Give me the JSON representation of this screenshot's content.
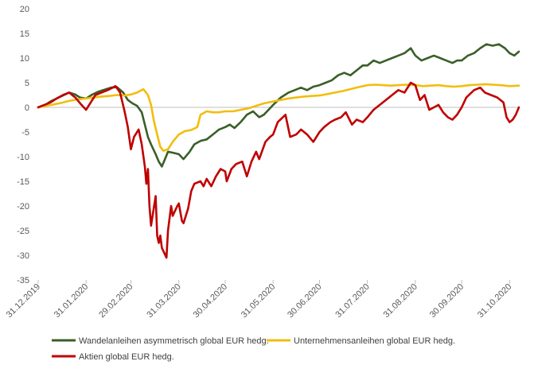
{
  "chart_data": {
    "type": "line",
    "title": "",
    "xlabel": "",
    "ylabel": "",
    "ylim": [
      -35,
      20
    ],
    "yticks": [
      20,
      15,
      10,
      5,
      0,
      -5,
      -10,
      -15,
      -20,
      -25,
      -30,
      -35
    ],
    "ytick_labels": [
      "20",
      "15",
      "10",
      "5",
      "0",
      "-5",
      "-10",
      "-15",
      "-20",
      "-25",
      "-30",
      "-35"
    ],
    "xlim": [
      "2019-12-31",
      "2020-11-06"
    ],
    "xticks": [
      "2019-12-31",
      "2020-01-31",
      "2020-02-29",
      "2020-03-31",
      "2020-04-30",
      "2020-05-31",
      "2020-06-30",
      "2020-07-31",
      "2020-08-31",
      "2020-09-30",
      "2020-10-31"
    ],
    "xtick_labels": [
      "31.12.2019",
      "31.01.2020",
      "29.02.2020",
      "31.03.2020",
      "30.04.2020",
      "31.05.2020",
      "30.06.2020",
      "31.07.2020",
      "31.08.2020",
      "30.09.2020",
      "31.10.2020"
    ],
    "grid": false,
    "legend_position": "bottom",
    "series": [
      {
        "name": "Wandelanleihen asymmetrisch global EUR hedg.",
        "color": "#3a5f27",
        "points": [
          [
            "2019-12-31",
            0
          ],
          [
            "2020-01-05",
            0.6
          ],
          [
            "2020-01-08",
            1.2
          ],
          [
            "2020-01-12",
            1.8
          ],
          [
            "2020-01-16",
            2.4
          ],
          [
            "2020-01-20",
            3.0
          ],
          [
            "2020-01-24",
            2.6
          ],
          [
            "2020-01-27",
            2.0
          ],
          [
            "2020-01-31",
            1.8
          ],
          [
            "2020-02-04",
            2.6
          ],
          [
            "2020-02-08",
            3.2
          ],
          [
            "2020-02-12",
            3.6
          ],
          [
            "2020-02-16",
            4.0
          ],
          [
            "2020-02-20",
            4.1
          ],
          [
            "2020-02-24",
            3.0
          ],
          [
            "2020-02-27",
            1.5
          ],
          [
            "2020-03-01",
            0.8
          ],
          [
            "2020-03-04",
            0.3
          ],
          [
            "2020-03-07",
            -1.0
          ],
          [
            "2020-03-09",
            -3.5
          ],
          [
            "2020-03-11",
            -6.0
          ],
          [
            "2020-03-13",
            -7.5
          ],
          [
            "2020-03-16",
            -9.5
          ],
          [
            "2020-03-18",
            -11.0
          ],
          [
            "2020-03-20",
            -12.0
          ],
          [
            "2020-03-22",
            -10.5
          ],
          [
            "2020-03-24",
            -9.0
          ],
          [
            "2020-03-27",
            -9.2
          ],
          [
            "2020-03-31",
            -9.5
          ],
          [
            "2020-04-03",
            -10.5
          ],
          [
            "2020-04-07",
            -9.0
          ],
          [
            "2020-04-10",
            -7.5
          ],
          [
            "2020-04-14",
            -6.8
          ],
          [
            "2020-04-18",
            -6.5
          ],
          [
            "2020-04-22",
            -5.5
          ],
          [
            "2020-04-26",
            -4.5
          ],
          [
            "2020-04-30",
            -4.0
          ],
          [
            "2020-05-03",
            -3.5
          ],
          [
            "2020-05-06",
            -4.2
          ],
          [
            "2020-05-10",
            -3.0
          ],
          [
            "2020-05-14",
            -1.5
          ],
          [
            "2020-05-18",
            -0.8
          ],
          [
            "2020-05-22",
            -2.0
          ],
          [
            "2020-05-25",
            -1.5
          ],
          [
            "2020-05-28",
            -0.5
          ],
          [
            "2020-05-31",
            0.5
          ],
          [
            "2020-06-05",
            2.0
          ],
          [
            "2020-06-10",
            3.0
          ],
          [
            "2020-06-14",
            3.5
          ],
          [
            "2020-06-18",
            4.0
          ],
          [
            "2020-06-22",
            3.5
          ],
          [
            "2020-06-26",
            4.2
          ],
          [
            "2020-06-30",
            4.5
          ],
          [
            "2020-07-04",
            5.0
          ],
          [
            "2020-07-08",
            5.5
          ],
          [
            "2020-07-12",
            6.5
          ],
          [
            "2020-07-16",
            7.0
          ],
          [
            "2020-07-20",
            6.5
          ],
          [
            "2020-07-24",
            7.5
          ],
          [
            "2020-07-28",
            8.5
          ],
          [
            "2020-07-31",
            8.5
          ],
          [
            "2020-08-04",
            9.5
          ],
          [
            "2020-08-08",
            9.0
          ],
          [
            "2020-08-12",
            9.5
          ],
          [
            "2020-08-16",
            10.0
          ],
          [
            "2020-08-20",
            10.5
          ],
          [
            "2020-08-24",
            11.0
          ],
          [
            "2020-08-28",
            12.0
          ],
          [
            "2020-08-31",
            10.5
          ],
          [
            "2020-09-04",
            9.5
          ],
          [
            "2020-09-08",
            10.0
          ],
          [
            "2020-09-12",
            10.5
          ],
          [
            "2020-09-16",
            10.0
          ],
          [
            "2020-09-20",
            9.5
          ],
          [
            "2020-09-24",
            9.0
          ],
          [
            "2020-09-27",
            9.5
          ],
          [
            "2020-09-30",
            9.5
          ],
          [
            "2020-10-04",
            10.5
          ],
          [
            "2020-10-08",
            11.0
          ],
          [
            "2020-10-12",
            12.0
          ],
          [
            "2020-10-16",
            12.8
          ],
          [
            "2020-10-20",
            12.5
          ],
          [
            "2020-10-24",
            12.8
          ],
          [
            "2020-10-28",
            12.0
          ],
          [
            "2020-10-31",
            11.0
          ],
          [
            "2020-11-03",
            10.5
          ],
          [
            "2020-11-06",
            11.3
          ]
        ]
      },
      {
        "name": "Unternehmensanleihen global EUR hedg.",
        "color": "#f2bd0d",
        "points": [
          [
            "2019-12-31",
            0
          ],
          [
            "2020-01-05",
            0.3
          ],
          [
            "2020-01-10",
            0.6
          ],
          [
            "2020-01-15",
            0.9
          ],
          [
            "2020-01-20",
            1.3
          ],
          [
            "2020-01-25",
            1.6
          ],
          [
            "2020-01-31",
            1.8
          ],
          [
            "2020-02-05",
            2.0
          ],
          [
            "2020-02-10",
            2.2
          ],
          [
            "2020-02-15",
            2.3
          ],
          [
            "2020-02-20",
            2.5
          ],
          [
            "2020-02-25",
            2.4
          ],
          [
            "2020-02-29",
            2.6
          ],
          [
            "2020-03-04",
            3.0
          ],
          [
            "2020-03-08",
            3.7
          ],
          [
            "2020-03-11",
            2.5
          ],
          [
            "2020-03-13",
            0.5
          ],
          [
            "2020-03-15",
            -3.0
          ],
          [
            "2020-03-17",
            -5.5
          ],
          [
            "2020-03-19",
            -8.0
          ],
          [
            "2020-03-21",
            -8.8
          ],
          [
            "2020-03-24",
            -8.5
          ],
          [
            "2020-03-27",
            -7.0
          ],
          [
            "2020-03-31",
            -5.5
          ],
          [
            "2020-04-04",
            -4.8
          ],
          [
            "2020-04-08",
            -4.6
          ],
          [
            "2020-04-12",
            -4.0
          ],
          [
            "2020-04-14",
            -1.5
          ],
          [
            "2020-04-18",
            -0.8
          ],
          [
            "2020-04-22",
            -1.0
          ],
          [
            "2020-04-26",
            -1.0
          ],
          [
            "2020-04-30",
            -0.8
          ],
          [
            "2020-05-05",
            -0.8
          ],
          [
            "2020-05-10",
            -0.5
          ],
          [
            "2020-05-15",
            -0.2
          ],
          [
            "2020-05-20",
            0.3
          ],
          [
            "2020-05-25",
            0.8
          ],
          [
            "2020-05-31",
            1.2
          ],
          [
            "2020-06-05",
            1.5
          ],
          [
            "2020-06-10",
            1.8
          ],
          [
            "2020-06-15",
            2.0
          ],
          [
            "2020-06-20",
            2.2
          ],
          [
            "2020-06-25",
            2.3
          ],
          [
            "2020-06-30",
            2.4
          ],
          [
            "2020-07-05",
            2.7
          ],
          [
            "2020-07-10",
            3.0
          ],
          [
            "2020-07-15",
            3.3
          ],
          [
            "2020-07-20",
            3.7
          ],
          [
            "2020-07-25",
            4.1
          ],
          [
            "2020-07-31",
            4.5
          ],
          [
            "2020-08-05",
            4.6
          ],
          [
            "2020-08-10",
            4.5
          ],
          [
            "2020-08-15",
            4.4
          ],
          [
            "2020-08-20",
            4.5
          ],
          [
            "2020-08-25",
            4.6
          ],
          [
            "2020-08-31",
            4.5
          ],
          [
            "2020-09-05",
            4.3
          ],
          [
            "2020-09-10",
            4.4
          ],
          [
            "2020-09-15",
            4.5
          ],
          [
            "2020-09-20",
            4.3
          ],
          [
            "2020-09-25",
            4.2
          ],
          [
            "2020-09-30",
            4.3
          ],
          [
            "2020-10-05",
            4.5
          ],
          [
            "2020-10-10",
            4.6
          ],
          [
            "2020-10-15",
            4.7
          ],
          [
            "2020-10-20",
            4.6
          ],
          [
            "2020-10-25",
            4.5
          ],
          [
            "2020-10-31",
            4.3
          ],
          [
            "2020-11-06",
            4.4
          ]
        ]
      },
      {
        "name": "Aktien global EUR hedg.",
        "color": "#c00000",
        "points": [
          [
            "2019-12-31",
            0
          ],
          [
            "2020-01-04",
            0.5
          ],
          [
            "2020-01-08",
            1.0
          ],
          [
            "2020-01-12",
            1.8
          ],
          [
            "2020-01-16",
            2.5
          ],
          [
            "2020-01-20",
            3.0
          ],
          [
            "2020-01-24",
            2.0
          ],
          [
            "2020-01-28",
            0.5
          ],
          [
            "2020-01-31",
            -0.5
          ],
          [
            "2020-02-03",
            1.0
          ],
          [
            "2020-02-06",
            2.5
          ],
          [
            "2020-02-10",
            3.0
          ],
          [
            "2020-02-14",
            3.5
          ],
          [
            "2020-02-19",
            4.3
          ],
          [
            "2020-02-22",
            3.0
          ],
          [
            "2020-02-25",
            -1.0
          ],
          [
            "2020-02-27",
            -4.0
          ],
          [
            "2020-02-29",
            -8.5
          ],
          [
            "2020-03-02",
            -6.0
          ],
          [
            "2020-03-05",
            -4.5
          ],
          [
            "2020-03-07",
            -7.5
          ],
          [
            "2020-03-09",
            -12.0
          ],
          [
            "2020-03-10",
            -15.5
          ],
          [
            "2020-03-11",
            -12.5
          ],
          [
            "2020-03-12",
            -20.0
          ],
          [
            "2020-03-13",
            -24.0
          ],
          [
            "2020-03-16",
            -18.0
          ],
          [
            "2020-03-17",
            -26.0
          ],
          [
            "2020-03-18",
            -27.5
          ],
          [
            "2020-03-19",
            -26.0
          ],
          [
            "2020-03-20",
            -28.5
          ],
          [
            "2020-03-23",
            -30.5
          ],
          [
            "2020-03-24",
            -25.0
          ],
          [
            "2020-03-26",
            -20.0
          ],
          [
            "2020-03-27",
            -22.0
          ],
          [
            "2020-03-30",
            -20.0
          ],
          [
            "2020-03-31",
            -19.5
          ],
          [
            "2020-04-02",
            -23.0
          ],
          [
            "2020-04-03",
            -23.5
          ],
          [
            "2020-04-06",
            -20.5
          ],
          [
            "2020-04-08",
            -17.0
          ],
          [
            "2020-04-10",
            -15.5
          ],
          [
            "2020-04-14",
            -15.0
          ],
          [
            "2020-04-16",
            -16.0
          ],
          [
            "2020-04-18",
            -14.5
          ],
          [
            "2020-04-21",
            -16.0
          ],
          [
            "2020-04-24",
            -14.0
          ],
          [
            "2020-04-27",
            -12.5
          ],
          [
            "2020-04-30",
            -13.0
          ],
          [
            "2020-05-01",
            -15.0
          ],
          [
            "2020-05-04",
            -12.5
          ],
          [
            "2020-05-07",
            -11.5
          ],
          [
            "2020-05-11",
            -11.0
          ],
          [
            "2020-05-14",
            -14.0
          ],
          [
            "2020-05-17",
            -11.0
          ],
          [
            "2020-05-20",
            -9.0
          ],
          [
            "2020-05-22",
            -10.5
          ],
          [
            "2020-05-26",
            -7.0
          ],
          [
            "2020-05-29",
            -6.0
          ],
          [
            "2020-05-31",
            -5.5
          ],
          [
            "2020-06-03",
            -3.0
          ],
          [
            "2020-06-08",
            -1.5
          ],
          [
            "2020-06-11",
            -6.0
          ],
          [
            "2020-06-15",
            -5.5
          ],
          [
            "2020-06-18",
            -4.5
          ],
          [
            "2020-06-22",
            -5.5
          ],
          [
            "2020-06-26",
            -7.0
          ],
          [
            "2020-06-30",
            -5.0
          ],
          [
            "2020-07-03",
            -4.0
          ],
          [
            "2020-07-07",
            -3.0
          ],
          [
            "2020-07-10",
            -2.5
          ],
          [
            "2020-07-14",
            -2.0
          ],
          [
            "2020-07-17",
            -1.0
          ],
          [
            "2020-07-21",
            -3.5
          ],
          [
            "2020-07-24",
            -2.5
          ],
          [
            "2020-07-28",
            -3.0
          ],
          [
            "2020-07-31",
            -2.0
          ],
          [
            "2020-08-04",
            -0.5
          ],
          [
            "2020-08-08",
            0.5
          ],
          [
            "2020-08-12",
            1.5
          ],
          [
            "2020-08-16",
            2.5
          ],
          [
            "2020-08-20",
            3.5
          ],
          [
            "2020-08-24",
            3.0
          ],
          [
            "2020-08-28",
            5.0
          ],
          [
            "2020-08-31",
            4.5
          ],
          [
            "2020-09-03",
            1.5
          ],
          [
            "2020-09-06",
            2.5
          ],
          [
            "2020-09-09",
            -0.5
          ],
          [
            "2020-09-12",
            0.0
          ],
          [
            "2020-09-15",
            0.5
          ],
          [
            "2020-09-18",
            -1.0
          ],
          [
            "2020-09-21",
            -2.0
          ],
          [
            "2020-09-24",
            -2.5
          ],
          [
            "2020-09-27",
            -1.5
          ],
          [
            "2020-09-30",
            0.0
          ],
          [
            "2020-10-03",
            2.0
          ],
          [
            "2020-10-08",
            3.5
          ],
          [
            "2020-10-12",
            4.0
          ],
          [
            "2020-10-15",
            3.0
          ],
          [
            "2020-10-19",
            2.5
          ],
          [
            "2020-10-23",
            2.0
          ],
          [
            "2020-10-27",
            1.0
          ],
          [
            "2020-10-29",
            -2.0
          ],
          [
            "2020-10-31",
            -3.0
          ],
          [
            "2020-11-02",
            -2.5
          ],
          [
            "2020-11-04",
            -1.5
          ],
          [
            "2020-11-06",
            0.0
          ]
        ]
      }
    ]
  }
}
